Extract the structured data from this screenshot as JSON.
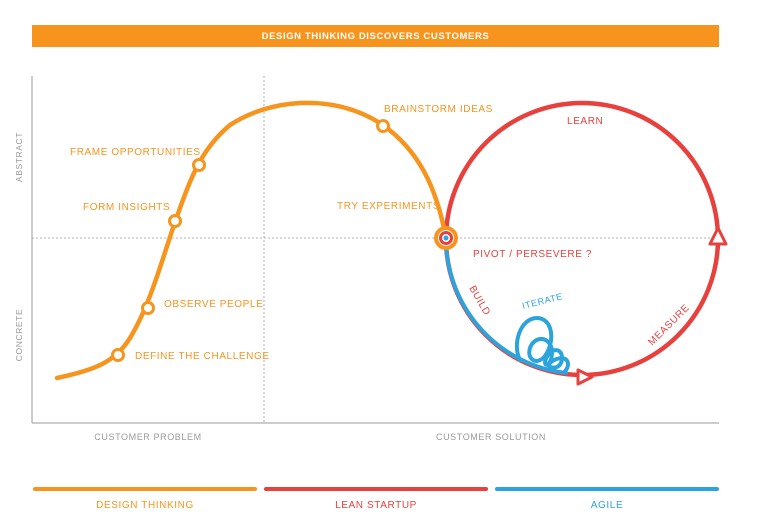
{
  "banner": {
    "title": "DESIGN THINKING DISCOVERS CUSTOMERS"
  },
  "axes": {
    "y_top": "ABSTRACT",
    "y_bottom": "CONCRETE",
    "x_left": "CUSTOMER PROBLEM",
    "x_right": "CUSTOMER SOLUTION"
  },
  "steps": {
    "define": "DEFINE THE CHALLENGE",
    "observe": "OBSERVE PEOPLE",
    "insights": "FORM INSIGHTS",
    "frame": "FRAME OPPORTUNITIES",
    "brainstorm": "BRAINSTORM IDEAS",
    "experiments": "TRY EXPERIMENTS",
    "pivot": "PIVOT / PERSEVERE ?",
    "learn": "LEARN",
    "build": "BUILD",
    "measure": "MEASURE",
    "iterate": "ITERATE"
  },
  "legend": {
    "design": "DESIGN THINKING",
    "lean": "LEAN STARTUP",
    "agile": "AGILE"
  },
  "colors": {
    "design_thinking": "#F7941D",
    "lean_startup": "#E8403C",
    "agile": "#2BA3DC",
    "axis": "#9a9a9a"
  }
}
